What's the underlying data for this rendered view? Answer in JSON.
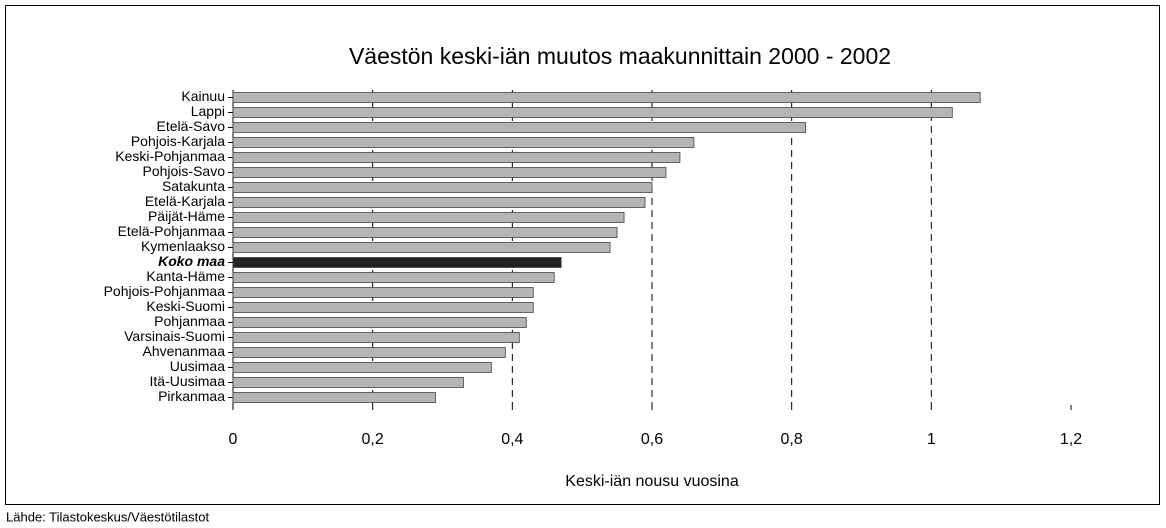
{
  "chart_data": {
    "type": "barh",
    "title": "Väestön keski-iän muutos maakunnittain 2000 - 2002",
    "x_label": "Keski-iän nousu vuosina",
    "source": "Lähde: Tilastokeskus/Väestötilastot",
    "categories": [
      "Kainuu",
      "Lappi",
      "Etelä-Savo",
      "Pohjois-Karjala",
      "Keski-Pohjanmaa",
      "Pohjois-Savo",
      "Satakunta",
      "Etelä-Karjala",
      "Päijät-Häme",
      "Etelä-Pohjanmaa",
      "Kymenlaakso",
      "Koko maa",
      "Kanta-Häme",
      "Pohjois-Pohjanmaa",
      "Keski-Suomi",
      "Pohjanmaa",
      "Varsinais-Suomi",
      "Ahvenanmaa",
      "Uusimaa",
      "Itä-Uusimaa",
      "Pirkanmaa"
    ],
    "values": [
      1.07,
      1.03,
      0.82,
      0.66,
      0.64,
      0.62,
      0.6,
      0.59,
      0.56,
      0.55,
      0.54,
      0.47,
      0.46,
      0.43,
      0.43,
      0.42,
      0.41,
      0.39,
      0.37,
      0.33,
      0.29
    ],
    "colors": [
      "#b5b5b5",
      "#b5b5b5",
      "#b5b5b5",
      "#b5b5b5",
      "#b5b5b5",
      "#b5b5b5",
      "#b5b5b5",
      "#b5b5b5",
      "#b5b5b5",
      "#b5b5b5",
      "#b5b5b5",
      "#222222",
      "#b5b5b5",
      "#b5b5b5",
      "#b5b5b5",
      "#b5b5b5",
      "#b5b5b5",
      "#b5b5b5",
      "#b5b5b5",
      "#b5b5b5",
      "#b5b5b5"
    ],
    "xlim": [
      0,
      1.2
    ],
    "xticks": [
      0,
      {
        "value": 0.2,
        "label": "0,2"
      },
      {
        "value": 0.4,
        "label": "0,4"
      },
      {
        "value": 0.6,
        "label": "0,6"
      },
      {
        "value": 0.8,
        "label": "0,8"
      },
      1,
      {
        "value": 1.2,
        "label": "1,2"
      }
    ],
    "grid": true
  }
}
